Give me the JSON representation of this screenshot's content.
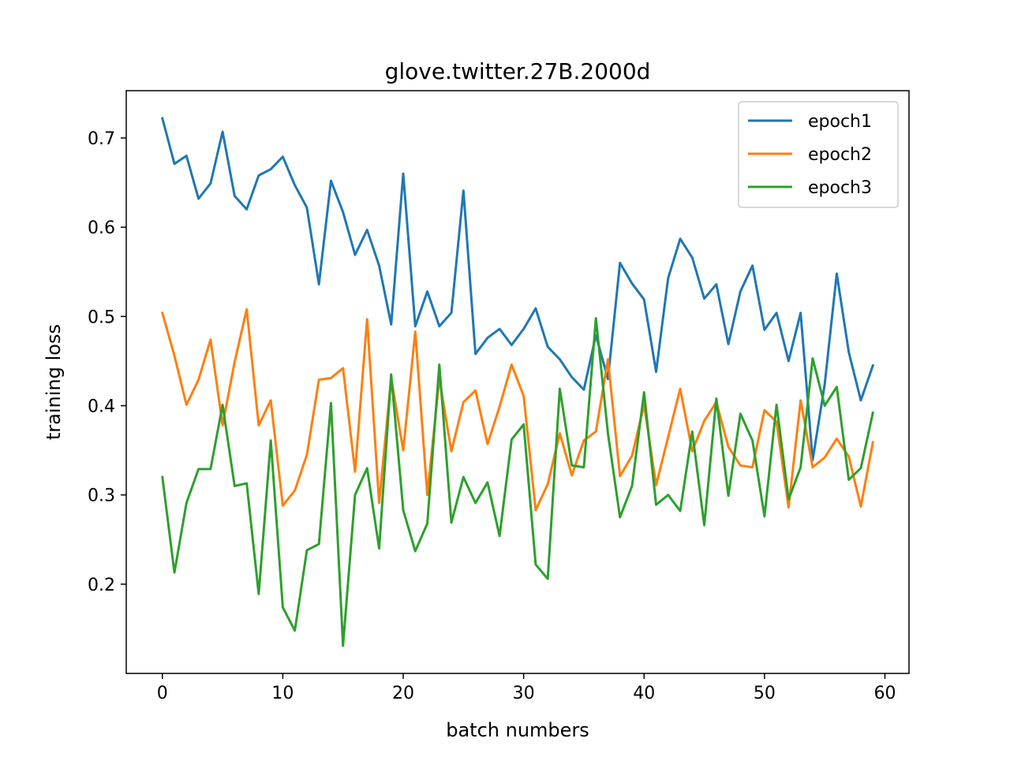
{
  "chart_data": {
    "type": "line",
    "title": "glove.twitter.27B.2000d",
    "xlabel": "batch numbers",
    "ylabel": "training loss",
    "xlim": [
      -3,
      62
    ],
    "ylim": [
      0.1,
      0.753
    ],
    "xticks": [
      0,
      10,
      20,
      30,
      40,
      50,
      60
    ],
    "xtick_labels": [
      "0",
      "10",
      "20",
      "30",
      "40",
      "50",
      "60"
    ],
    "yticks": [
      0.2,
      0.3,
      0.4,
      0.5,
      0.6,
      0.7
    ],
    "ytick_labels": [
      "0.2",
      "0.3",
      "0.4",
      "0.5",
      "0.6",
      "0.7"
    ],
    "legend_position": "top-right",
    "grid": false,
    "x": [
      0,
      1,
      2,
      3,
      4,
      5,
      6,
      7,
      8,
      9,
      10,
      11,
      12,
      13,
      14,
      15,
      16,
      17,
      18,
      19,
      20,
      21,
      22,
      23,
      24,
      25,
      26,
      27,
      28,
      29,
      30,
      31,
      32,
      33,
      34,
      35,
      36,
      37,
      38,
      39,
      40,
      41,
      42,
      43,
      44,
      45,
      46,
      47,
      48,
      49,
      50,
      51,
      52,
      53,
      54,
      55,
      56,
      57,
      58,
      59
    ],
    "series": [
      {
        "name": "epoch1",
        "color": "#1f77b4",
        "values": [
          0.722,
          0.671,
          0.68,
          0.632,
          0.649,
          0.707,
          0.635,
          0.62,
          0.658,
          0.665,
          0.679,
          0.647,
          0.622,
          0.536,
          0.652,
          0.617,
          0.569,
          0.597,
          0.557,
          0.491,
          0.66,
          0.489,
          0.528,
          0.489,
          0.504,
          0.641,
          0.458,
          0.476,
          0.486,
          0.468,
          0.486,
          0.509,
          0.466,
          0.452,
          0.432,
          0.418,
          0.479,
          0.43,
          0.56,
          0.537,
          0.519,
          0.438,
          0.543,
          0.587,
          0.566,
          0.52,
          0.536,
          0.469,
          0.528,
          0.557,
          0.485,
          0.504,
          0.45,
          0.504,
          0.339,
          0.424,
          0.548,
          0.46,
          0.406,
          0.445
        ]
      },
      {
        "name": "epoch2",
        "color": "#ff7f0e",
        "values": [
          0.504,
          0.456,
          0.401,
          0.429,
          0.474,
          0.378,
          0.449,
          0.508,
          0.378,
          0.406,
          0.288,
          0.305,
          0.345,
          0.429,
          0.431,
          0.442,
          0.326,
          0.497,
          0.291,
          0.431,
          0.35,
          0.483,
          0.3,
          0.43,
          0.349,
          0.404,
          0.417,
          0.357,
          0.399,
          0.446,
          0.411,
          0.283,
          0.312,
          0.369,
          0.322,
          0.361,
          0.371,
          0.452,
          0.321,
          0.344,
          0.401,
          0.311,
          0.365,
          0.419,
          0.349,
          0.383,
          0.404,
          0.354,
          0.333,
          0.331,
          0.395,
          0.382,
          0.286,
          0.406,
          0.331,
          0.342,
          0.363,
          0.343,
          0.287,
          0.359
        ]
      },
      {
        "name": "epoch3",
        "color": "#2ca02c",
        "values": [
          0.32,
          0.213,
          0.291,
          0.329,
          0.329,
          0.401,
          0.31,
          0.313,
          0.189,
          0.361,
          0.174,
          0.148,
          0.238,
          0.245,
          0.403,
          0.131,
          0.3,
          0.33,
          0.24,
          0.435,
          0.283,
          0.237,
          0.268,
          0.446,
          0.269,
          0.32,
          0.291,
          0.314,
          0.254,
          0.362,
          0.379,
          0.222,
          0.206,
          0.419,
          0.333,
          0.331,
          0.498,
          0.369,
          0.275,
          0.31,
          0.415,
          0.289,
          0.3,
          0.282,
          0.371,
          0.266,
          0.408,
          0.299,
          0.391,
          0.361,
          0.276,
          0.401,
          0.295,
          0.331,
          0.453,
          0.4,
          0.421,
          0.317,
          0.33,
          0.392
        ]
      }
    ]
  }
}
